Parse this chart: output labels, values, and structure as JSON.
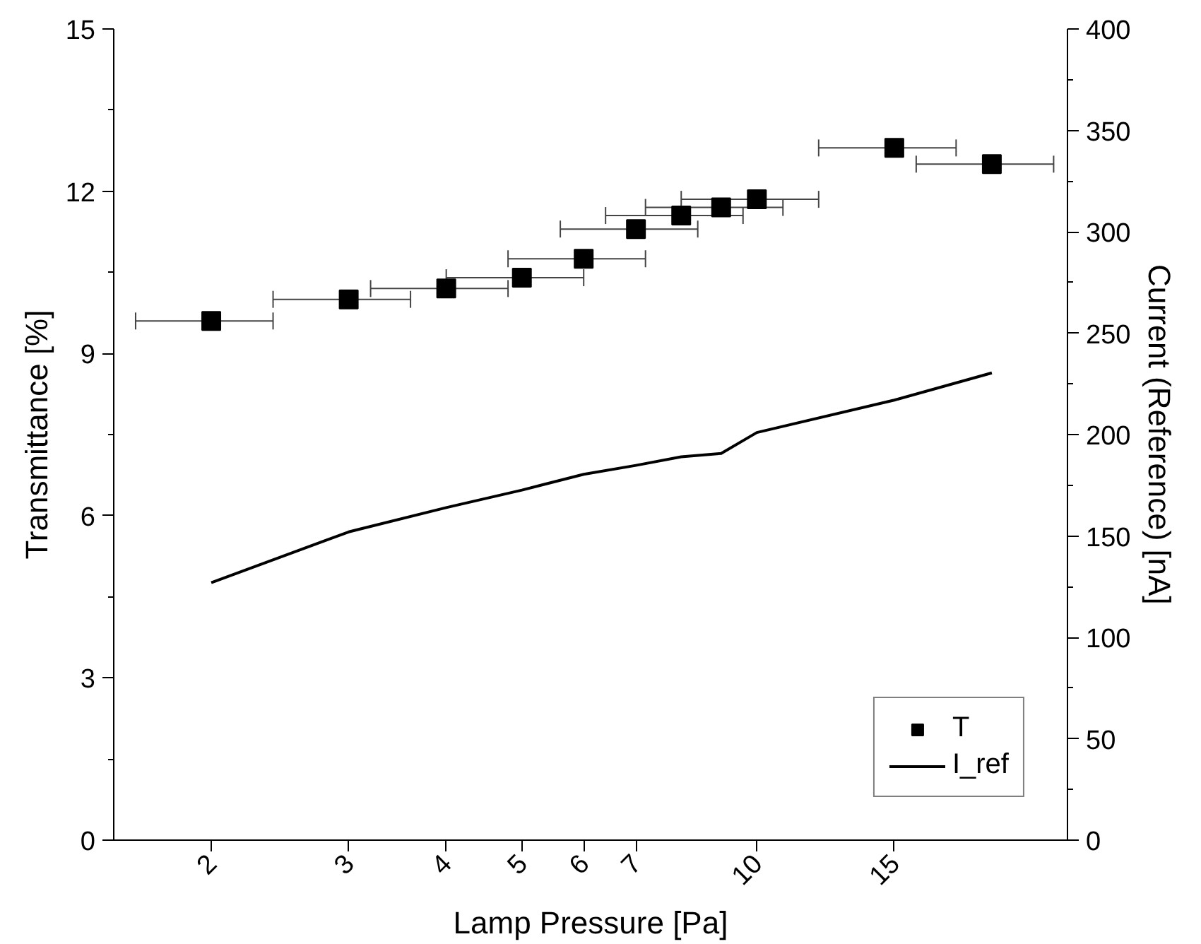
{
  "chart_data": {
    "type": "scatter",
    "xlabel": "Lamp Pressure [Pa]",
    "ylabel": "Transmittance [%]",
    "y2label": "Current (Reference) [nA]",
    "x": [
      2,
      3,
      4,
      5,
      6,
      7,
      8,
      9,
      10,
      15,
      20
    ],
    "series": [
      {
        "name": "T",
        "color": "#000000",
        "marker": "square",
        "values": [
          9.6,
          10.0,
          10.2,
          10.4,
          10.75,
          11.3,
          11.55,
          11.7,
          11.85,
          12.8,
          12.5
        ],
        "xerrors": [
          0.4,
          0.6,
          0.8,
          1.0,
          1.2,
          1.4,
          1.6,
          1.8,
          2.0,
          3.0,
          4.0
        ]
      },
      {
        "name": "I_ref",
        "type": "line",
        "color": "#000000",
        "axis": "y2",
        "marker": "none",
        "line_style": "solid",
        "values": [
          127,
          152,
          164,
          172.6,
          180.4,
          184.8,
          189,
          190.7,
          201,
          217,
          230.4
        ]
      }
    ],
    "log": "x",
    "xlim": [
      1.5,
      25
    ],
    "xticks": [
      2,
      3,
      4,
      5,
      6,
      7,
      10,
      15
    ],
    "ylim": [
      0,
      15
    ],
    "yticks": [
      0,
      3,
      6,
      9,
      12,
      15
    ],
    "y2lim": [
      0,
      400
    ],
    "y2ticks": [
      0,
      50,
      100,
      150,
      200,
      250,
      300,
      350,
      400
    ],
    "grid": false,
    "legend": "bottom right"
  }
}
